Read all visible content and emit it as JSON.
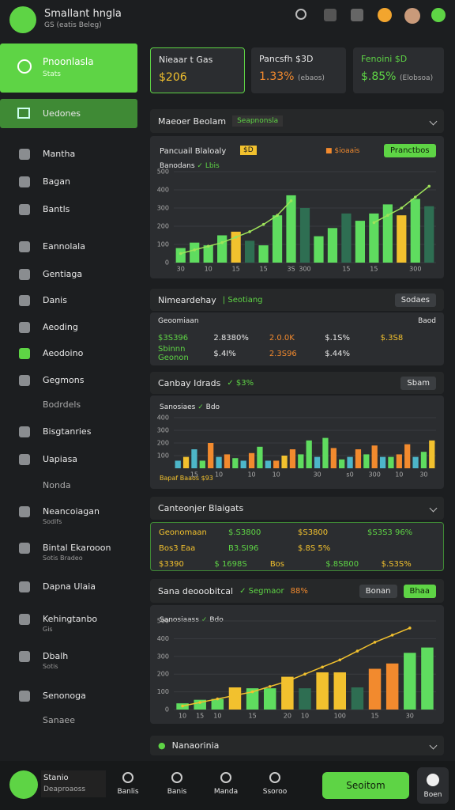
{
  "header": {
    "title": "Smallant hngla",
    "subtitle": "GS (eatis Beleg)"
  },
  "sidebar": {
    "active": {
      "title": "Pnoonlasla",
      "subtitle": "Stats"
    },
    "selected": "Uedones",
    "items": [
      {
        "label": "Mantha"
      },
      {
        "label": "Bagan"
      },
      {
        "label": "Bantls"
      },
      {
        "label": "Eannolala"
      },
      {
        "label": "Gentiaga"
      },
      {
        "label": "Danis"
      },
      {
        "label": "Aeoding"
      },
      {
        "label": "Aeodoino"
      },
      {
        "label": "Gegmons"
      },
      {
        "label": "Bodrdels"
      },
      {
        "label": "Bisgtanries"
      },
      {
        "label": "Uapiasa"
      },
      {
        "label": "Nonda"
      },
      {
        "label": "Neancoiagan",
        "sub": "Sodifs"
      },
      {
        "label": "Bintal Ekarooon",
        "sub": "Sotis Bradeo"
      },
      {
        "label": "Dapna Ulaia"
      },
      {
        "label": "Kehingtanbo",
        "sub": "Gis"
      },
      {
        "label": "Dbalh",
        "sub": "Sotis"
      },
      {
        "label": "Senonoga"
      },
      {
        "label": "Sanaee"
      }
    ]
  },
  "cards": [
    {
      "title": "Nieaar t Gas",
      "value": "$206"
    },
    {
      "title": "Pancsfh $3D",
      "value": "1.33%",
      "note": "(ebaos)"
    },
    {
      "title": "Fenoini $D",
      "value": "$.85%",
      "note": "(Elobsoa)"
    }
  ],
  "sections": [
    {
      "title": "Maeoer Beolam",
      "tag": "Seapnonsla"
    },
    {
      "title": "Nimeardehay",
      "tag": "Seotiang",
      "button": "Sodaes"
    },
    {
      "title": "Canbay Idrads",
      "tag": "$3%",
      "button": "Sbam"
    },
    {
      "title": "Canteonjer Blaigats"
    },
    {
      "title": "Sana deooobitcal",
      "tag": "Segmaor",
      "tag2": "88%",
      "button": "Bonan",
      "button2": "Bhaa"
    },
    {
      "title": "Nanaorinia"
    }
  ],
  "tables": [
    {
      "title": "Geoomiaan",
      "aside": "Baod",
      "rows": [
        [
          "$3S396",
          "2.8380%",
          "2.0.0K",
          "$.1S%",
          "$.3S8"
        ],
        [
          "Sbinnn Geonon",
          "$.4I%",
          "2.3S96",
          "$.44%",
          ""
        ]
      ]
    },
    {
      "rows": [
        [
          "Geonomaan",
          "$.S3800",
          "$S3800",
          "$S3S3 96%"
        ],
        [
          "Bos3 Eaa",
          "B3.SI96",
          "$.8S 5%",
          ""
        ],
        [
          "$3390",
          "$ 1698S",
          "Bos",
          "$.8SB00",
          "$.S3S%"
        ]
      ]
    }
  ],
  "charts": [
    {
      "type": "bar",
      "title": "Pancuail Blaloaly",
      "badge": "$D",
      "legend": "$ioaais",
      "button": "Pranctbos",
      "subtitle": "Banodans",
      "subtag": "Lbis",
      "values": [
        80,
        110,
        95,
        150,
        170,
        120,
        95,
        260,
        370,
        300,
        145,
        190,
        270,
        230,
        270,
        320,
        260,
        350,
        310
      ],
      "colors": [
        "#5fdc5f",
        "#5fdc5f",
        "#5fdc5f",
        "#5fdc5f",
        "#f2c12e",
        "#2e6e52",
        "#5fdc5f",
        "#5fdc5f",
        "#5fdc5f",
        "#2e6e52",
        "#5fdc5f",
        "#5fdc5f",
        "#2e6e52",
        "#5fdc5f",
        "#5fdc5f",
        "#5fdc5f",
        "#f2c12e",
        "#5fdc5f",
        "#2e6e52"
      ],
      "line": [
        50,
        70,
        90,
        110,
        140,
        170,
        210,
        260,
        340,
        null,
        null,
        null,
        null,
        null,
        220,
        260,
        300,
        360,
        420
      ],
      "line_color": "#9ee35a",
      "categories": [
        "30",
        null,
        "10",
        null,
        "15",
        null,
        "15",
        null,
        "3S",
        "300",
        null,
        null,
        "15",
        null,
        "15",
        null,
        null,
        "300",
        null
      ],
      "ylim": [
        0,
        500
      ],
      "yticks": [
        0,
        100,
        200,
        300,
        400,
        500
      ]
    },
    {
      "type": "bar",
      "subtitle": "Sanosiaes",
      "subtag": "Bdo",
      "footer": "Bapaf Baaos $93",
      "values": [
        60,
        90,
        150,
        60,
        200,
        90,
        110,
        80,
        60,
        120,
        170,
        60,
        60,
        100,
        150,
        110,
        220,
        90,
        240,
        160,
        70,
        90,
        150,
        110,
        180,
        90,
        90,
        110,
        190,
        90,
        130,
        220
      ],
      "colors": [
        "#4db6c9",
        "#f2c12e",
        "#4db6c9",
        "#5fdc5f",
        "#f28a2e",
        "#4db6c9",
        "#f28a2e",
        "#5fdc5f",
        "#4db6c9",
        "#f28a2e",
        "#5fdc5f",
        "#4db6c9",
        "#f28a2e",
        "#f2c12e",
        "#f28a2e",
        "#5fdc5f",
        "#5fdc5f",
        "#4db6c9",
        "#5fdc5f",
        "#f28a2e",
        "#5fdc5f",
        "#4db6c9",
        "#f28a2e",
        "#5fdc5f",
        "#f28a2e",
        "#4db6c9",
        "#5fdc5f",
        "#f28a2e",
        "#f28a2e",
        "#4db6c9",
        "#5fdc5f",
        "#f2c12e"
      ],
      "categories": [
        null,
        null,
        "15",
        null,
        null,
        "10",
        null,
        null,
        null,
        "10",
        null,
        null,
        "10",
        null,
        null,
        null,
        null,
        "30",
        null,
        null,
        null,
        "s0",
        null,
        null,
        "300",
        null,
        null,
        "10",
        null,
        null,
        "30",
        null
      ],
      "ylim": [
        0,
        400
      ],
      "yticks": [
        100,
        200,
        300,
        400
      ]
    },
    {
      "type": "bar",
      "subtitle": "Sanosiaass",
      "subtag": "Bdo",
      "values": [
        35,
        55,
        60,
        125,
        120,
        120,
        185,
        120,
        210,
        210,
        125,
        230,
        260,
        320,
        350
      ],
      "colors": [
        "#5fdc5f",
        "#5fdc5f",
        "#5fdc5f",
        "#f2c12e",
        "#5fdc5f",
        "#5fdc5f",
        "#f2c12e",
        "#2e6e52",
        "#f2c12e",
        "#f2c12e",
        "#2e6e52",
        "#f28a2e",
        "#f28a2e",
        "#5fdc5f",
        "#5fdc5f"
      ],
      "line": [
        20,
        40,
        60,
        80,
        100,
        130,
        160,
        200,
        240,
        280,
        330,
        380,
        420,
        460,
        null
      ],
      "line_color": "#f2c12e",
      "categories": [
        "10",
        "15",
        "10",
        null,
        "15",
        null,
        "20",
        "10",
        null,
        "100",
        null,
        "15",
        null,
        "30",
        null
      ],
      "ylim": [
        0,
        500
      ],
      "yticks": [
        0,
        100,
        200,
        300,
        400,
        500
      ]
    }
  ],
  "bottom": {
    "title": "Stanio",
    "subtitle": "Deaproaoss",
    "nav": [
      "Banlis",
      "Banis",
      "Manda",
      "Ssoroo"
    ],
    "button": "Seoitom",
    "profile": "Boen"
  }
}
